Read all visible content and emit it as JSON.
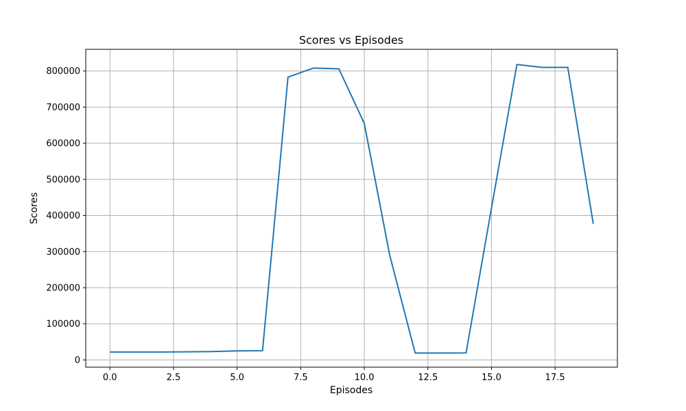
{
  "chart_data": {
    "type": "line",
    "title": "Scores vs Episodes",
    "xlabel": "Episodes",
    "ylabel": "Scores",
    "xlim": [
      -0.95,
      19.95
    ],
    "ylim": [
      -20000,
      860000
    ],
    "xticks": [
      0.0,
      2.5,
      5.0,
      7.5,
      10.0,
      12.5,
      15.0,
      17.5
    ],
    "xtick_labels": [
      "0.0",
      "2.5",
      "5.0",
      "7.5",
      "10.0",
      "12.5",
      "15.0",
      "17.5"
    ],
    "yticks": [
      0,
      100000,
      200000,
      300000,
      400000,
      500000,
      600000,
      700000,
      800000
    ],
    "ytick_labels": [
      "0",
      "100000",
      "200000",
      "300000",
      "400000",
      "500000",
      "600000",
      "700000",
      "800000"
    ],
    "grid": true,
    "series": [
      {
        "color": "#1f77b4",
        "x": [
          0,
          1,
          2,
          3,
          4,
          5,
          6,
          7,
          8,
          9,
          10,
          11,
          12,
          13,
          14,
          15,
          16,
          17,
          18,
          19
        ],
        "y": [
          22000,
          22000,
          22000,
          22500,
          23000,
          25000,
          25500,
          783000,
          808000,
          806000,
          655000,
          290000,
          19000,
          19000,
          19500,
          420000,
          818000,
          810000,
          810000,
          377000
        ]
      }
    ]
  }
}
